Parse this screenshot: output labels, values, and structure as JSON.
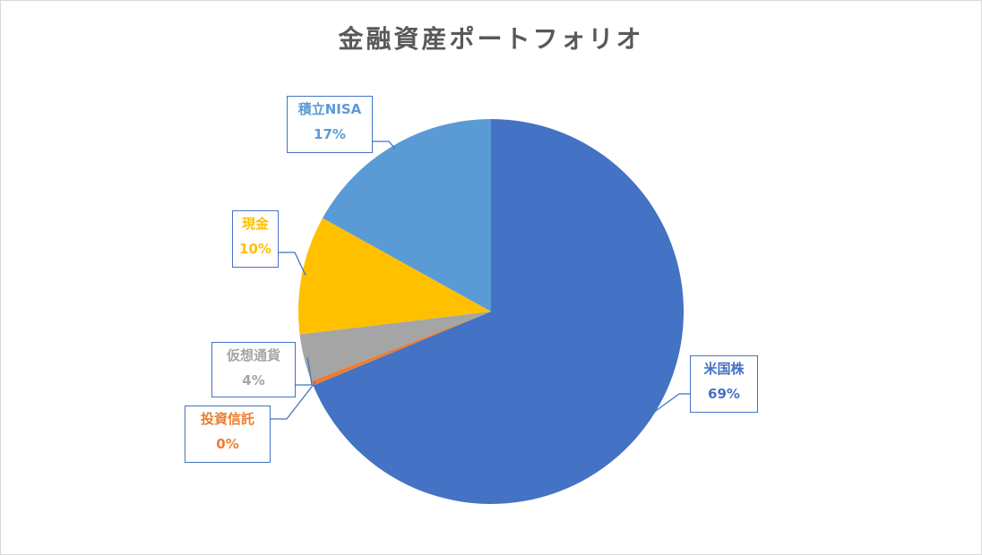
{
  "chart_data": {
    "type": "pie",
    "title": "金融資産ポートフォリオ",
    "slices": [
      {
        "label": "米国株",
        "value": 69,
        "pct_label": "69%",
        "color": "#4472c4"
      },
      {
        "label": "投資信託",
        "value": 0.4,
        "pct_label": "0%",
        "color": "#ed7d31"
      },
      {
        "label": "仮想通貨",
        "value": 4,
        "pct_label": "4%",
        "color": "#a5a5a5"
      },
      {
        "label": "現金",
        "value": 10,
        "pct_label": "10%",
        "color": "#ffc000"
      },
      {
        "label": "積立NISA",
        "value": 17,
        "pct_label": "17%",
        "color": "#5b9bd5"
      }
    ],
    "start_angle": "12 o'clock, clockwise",
    "legend": "none",
    "data_labels": "callouts with category name and percentage"
  }
}
